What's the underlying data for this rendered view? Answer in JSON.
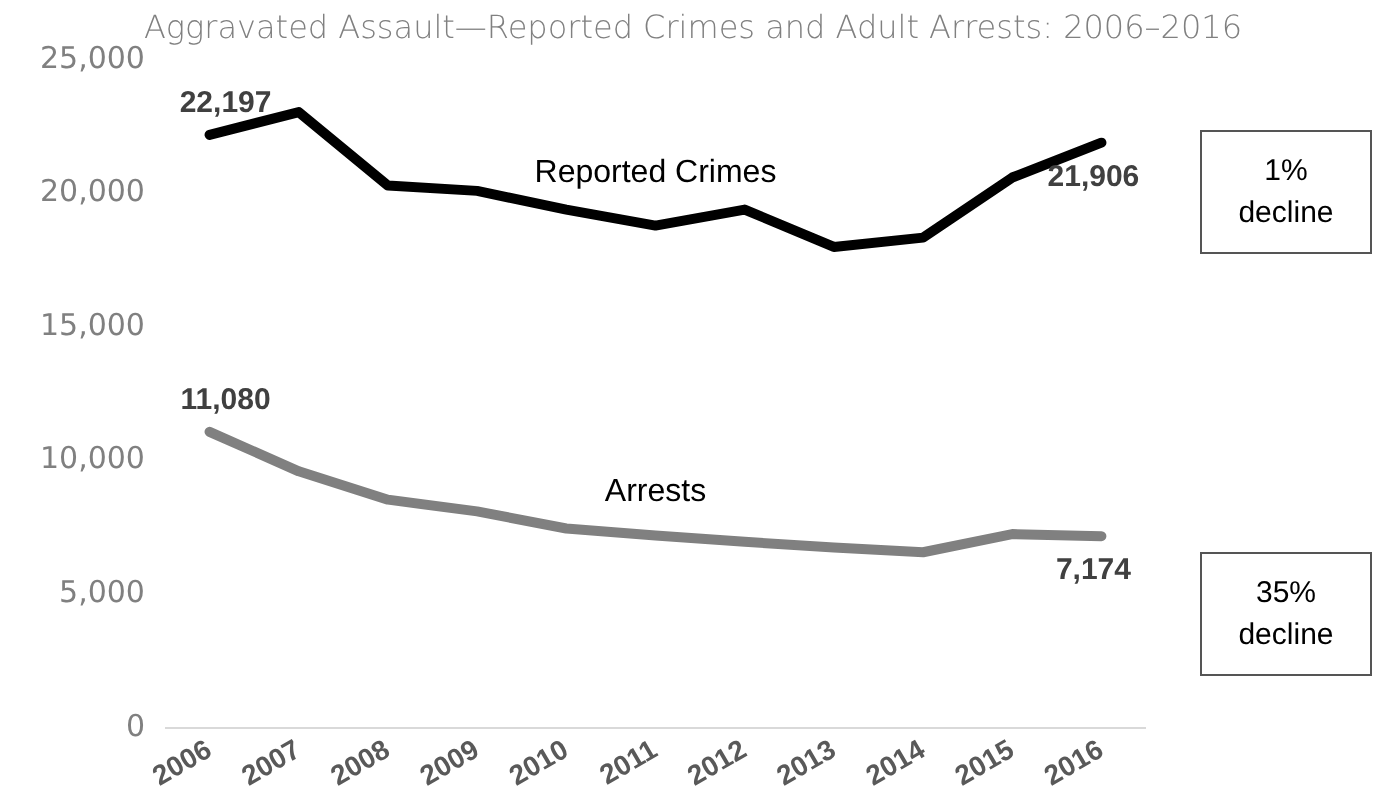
{
  "chart_data": {
    "type": "line",
    "title": "Aggravated Assault—Reported Crimes and Adult Arrests: 2006–2016",
    "categories": [
      "2006",
      "2007",
      "2008",
      "2009",
      "2010",
      "2011",
      "2012",
      "2013",
      "2014",
      "2015",
      "2016"
    ],
    "series": [
      {
        "name": "Reported Crimes",
        "color": "#000000",
        "values": [
          22197,
          23050,
          20300,
          20100,
          19400,
          18800,
          19400,
          18000,
          18350,
          20600,
          21906
        ],
        "value_labels": [
          "22,197",
          null,
          null,
          null,
          null,
          null,
          null,
          null,
          null,
          null,
          "21,906"
        ]
      },
      {
        "name": "Arrests",
        "color": "#808080",
        "values": [
          11080,
          9600,
          8540,
          8100,
          7460,
          7200,
          6960,
          6750,
          6570,
          7250,
          7174
        ],
        "value_labels": [
          "11,080",
          null,
          null,
          null,
          null,
          null,
          null,
          null,
          null,
          null,
          "7,174"
        ]
      }
    ],
    "ylim": [
      0,
      25000
    ],
    "yticks": [
      {
        "value": 0,
        "label": "0"
      },
      {
        "value": 5000,
        "label": "5,000"
      },
      {
        "value": 10000,
        "label": "10,000"
      },
      {
        "value": 15000,
        "label": "15,000"
      },
      {
        "value": 20000,
        "label": "20,000"
      },
      {
        "value": 25000,
        "label": "25,000"
      }
    ],
    "grid": false,
    "legend": false,
    "marker": "none",
    "line_style": "solid",
    "annotations": [
      "1% decline",
      "35% decline"
    ]
  }
}
